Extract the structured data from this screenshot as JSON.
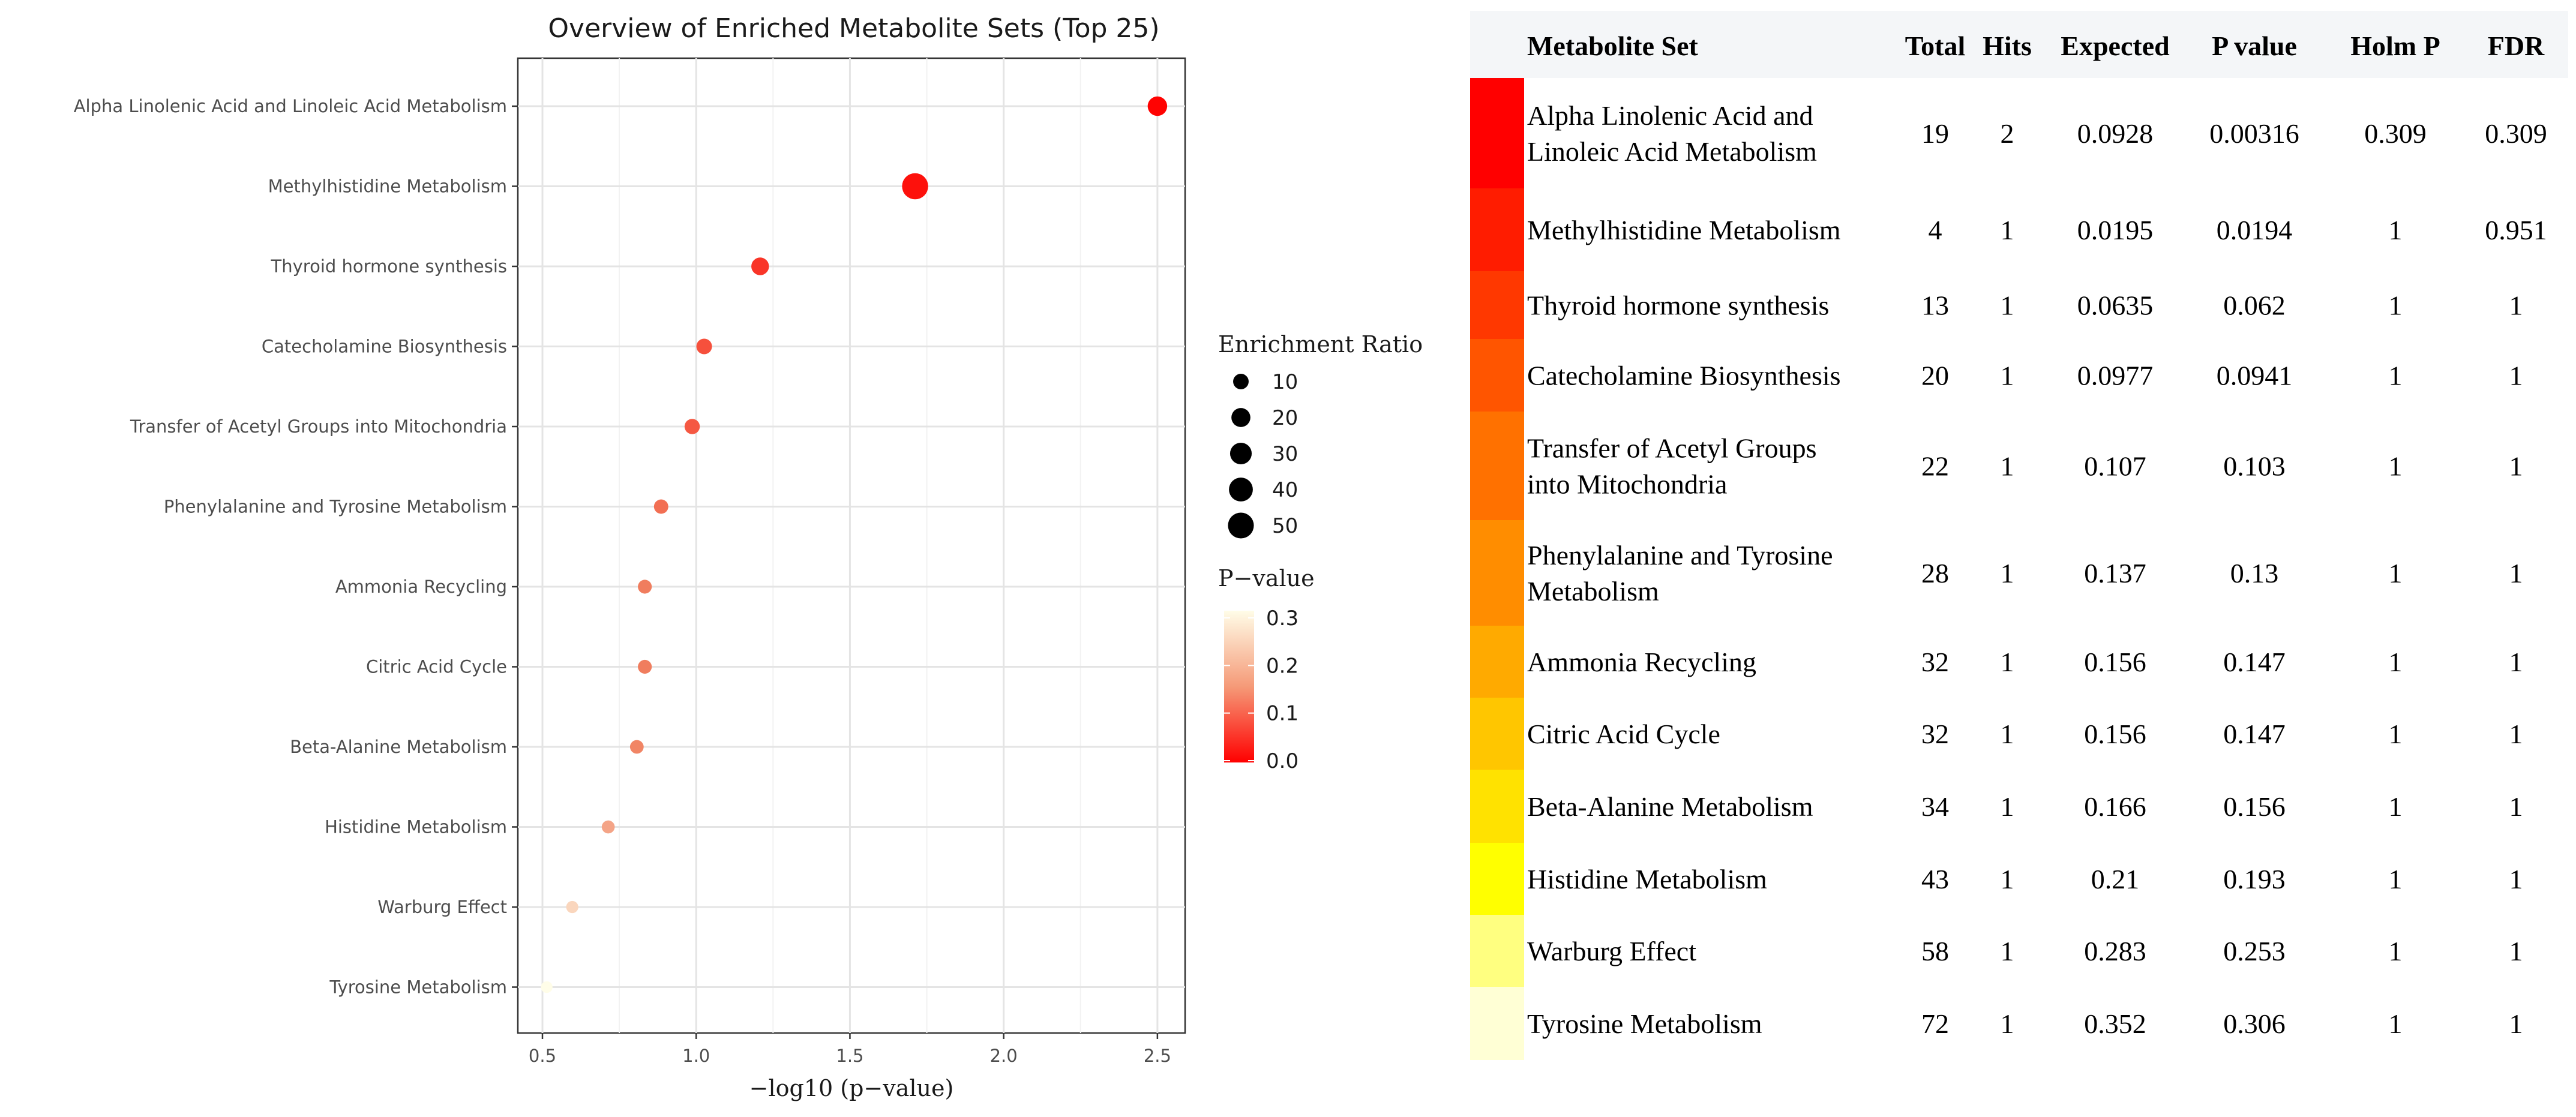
{
  "chart_data": {
    "type": "scatter",
    "title": "Overview of Enriched Metabolite Sets (Top 25)",
    "xlabel": "−log10 (p−value)",
    "ylabel": "",
    "xlim": [
      0.42,
      2.59
    ],
    "xticks": [
      0.5,
      1.0,
      1.5,
      2.0,
      2.5
    ],
    "xtick_labels": [
      "0.5",
      "1.0",
      "1.5",
      "2.0",
      "2.5"
    ],
    "grid": true,
    "categories": [
      "Alpha Linolenic Acid and Linoleic Acid Metabolism",
      "Methylhistidine Metabolism",
      "Thyroid hormone synthesis",
      "Catecholamine Biosynthesis",
      "Transfer of Acetyl Groups into Mitochondria",
      "Phenylalanine and Tyrosine Metabolism",
      "Ammonia Recycling",
      "Citric Acid Cycle",
      "Beta-Alanine Metabolism",
      "Histidine Metabolism",
      "Warburg Effect",
      "Tyrosine Metabolism"
    ],
    "x": [
      2.5,
      1.712,
      1.208,
      1.026,
      0.987,
      0.886,
      0.833,
      0.833,
      0.807,
      0.714,
      0.597,
      0.514
    ],
    "p_value": [
      0.00316,
      0.0194,
      0.062,
      0.0941,
      0.103,
      0.13,
      0.147,
      0.147,
      0.156,
      0.193,
      0.253,
      0.306
    ],
    "enrichment_ratio": [
      21.6,
      51.3,
      15.7,
      10.2,
      9.3,
      7.3,
      6.4,
      6.4,
      6.0,
      4.8,
      3.5,
      2.8
    ],
    "size_legend": {
      "title": "Enrichment Ratio",
      "values": [
        10,
        20,
        30,
        40,
        50
      ],
      "labels": [
        "10",
        "20",
        "30",
        "40",
        "50"
      ]
    },
    "color_legend": {
      "title": "P−value",
      "values": [
        0.3,
        0.2,
        0.1,
        0.0
      ],
      "labels": [
        "0.3",
        "0.2",
        "0.1",
        "0.0"
      ],
      "low_color": "#ff0000",
      "mid_color": "#f08060",
      "high_color": "#fffde8"
    }
  },
  "table": {
    "headers": [
      "Metabolite Set",
      "Total",
      "Hits",
      "Expected",
      "P value",
      "Holm P",
      "FDR"
    ],
    "header_bg": "#f4f6f8",
    "rows": [
      {
        "name_lines": [
          "Alpha Linolenic Acid and",
          "Linoleic Acid Metabolism"
        ],
        "total": "19",
        "hits": "2",
        "expected": "0.0928",
        "p": "0.00316",
        "holm": "0.309",
        "fdr": "0.309",
        "color": "#ff0000"
      },
      {
        "name_lines": [
          "Methylhistidine Metabolism"
        ],
        "total": "4",
        "hits": "1",
        "expected": "0.0195",
        "p": "0.0194",
        "holm": "1",
        "fdr": "0.951",
        "color": "#ff1c00"
      },
      {
        "name_lines": [
          "Thyroid hormone synthesis"
        ],
        "total": "13",
        "hits": "1",
        "expected": "0.0635",
        "p": "0.062",
        "holm": "1",
        "fdr": "1",
        "color": "#ff3800"
      },
      {
        "name_lines": [
          "Catecholamine Biosynthesis"
        ],
        "total": "20",
        "hits": "1",
        "expected": "0.0977",
        "p": "0.0941",
        "holm": "1",
        "fdr": "1",
        "color": "#ff5500"
      },
      {
        "name_lines": [
          "Transfer of Acetyl Groups",
          "into Mitochondria"
        ],
        "total": "22",
        "hits": "1",
        "expected": "0.107",
        "p": "0.103",
        "holm": "1",
        "fdr": "1",
        "color": "#ff7100"
      },
      {
        "name_lines": [
          "Phenylalanine and Tyrosine",
          "Metabolism"
        ],
        "total": "28",
        "hits": "1",
        "expected": "0.137",
        "p": "0.13",
        "holm": "1",
        "fdr": "1",
        "color": "#ff8d00"
      },
      {
        "name_lines": [
          "Ammonia Recycling"
        ],
        "total": "32",
        "hits": "1",
        "expected": "0.156",
        "p": "0.147",
        "holm": "1",
        "fdr": "1",
        "color": "#ffaa00"
      },
      {
        "name_lines": [
          "Citric Acid Cycle"
        ],
        "total": "32",
        "hits": "1",
        "expected": "0.156",
        "p": "0.147",
        "holm": "1",
        "fdr": "1",
        "color": "#ffc600"
      },
      {
        "name_lines": [
          "Beta-Alanine Metabolism"
        ],
        "total": "34",
        "hits": "1",
        "expected": "0.166",
        "p": "0.156",
        "holm": "1",
        "fdr": "1",
        "color": "#ffe200"
      },
      {
        "name_lines": [
          "Histidine Metabolism"
        ],
        "total": "43",
        "hits": "1",
        "expected": "0.21",
        "p": "0.193",
        "holm": "1",
        "fdr": "1",
        "color": "#ffff00"
      },
      {
        "name_lines": [
          "Warburg Effect"
        ],
        "total": "58",
        "hits": "1",
        "expected": "0.283",
        "p": "0.253",
        "holm": "1",
        "fdr": "1",
        "color": "#ffff80"
      },
      {
        "name_lines": [
          "Tyrosine Metabolism"
        ],
        "total": "72",
        "hits": "1",
        "expected": "0.352",
        "p": "0.306",
        "holm": "1",
        "fdr": "1",
        "color": "#ffffd5"
      }
    ]
  }
}
